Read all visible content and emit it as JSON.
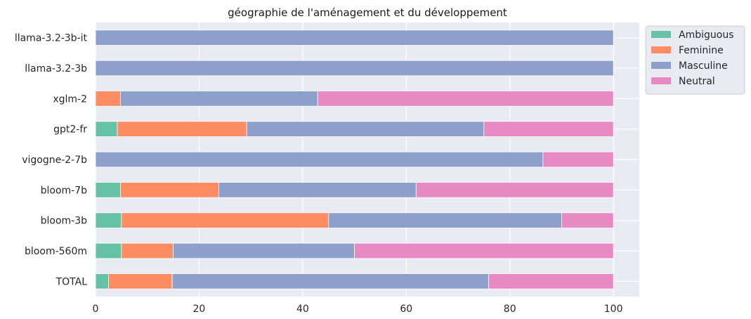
{
  "chart_data": {
    "type": "bar",
    "orientation": "horizontal",
    "stacked": true,
    "title": "géographie de l'aménagement et du développement",
    "xlabel": "",
    "ylabel": "",
    "xlim": [
      0,
      105
    ],
    "xticks": [
      "0",
      "20",
      "40",
      "60",
      "80",
      "100"
    ],
    "grid": true,
    "legend_position": "outside-top-right",
    "categories": [
      "llama-3.2-3b-it",
      "llama-3.2-3b",
      "xglm-2",
      "gpt2-fr",
      "vigogne-2-7b",
      "bloom-7b",
      "bloom-3b",
      "bloom-560m",
      "TOTAL"
    ],
    "series": [
      {
        "name": "Ambiguous",
        "color": "#66c2a5",
        "values": [
          0,
          0,
          0,
          4.2,
          0,
          4.8,
          5.0,
          5.0,
          2.5
        ]
      },
      {
        "name": "Feminine",
        "color": "#fc8d62",
        "values": [
          0,
          0,
          4.8,
          25.0,
          0,
          19.0,
          40.0,
          10.0,
          12.3
        ]
      },
      {
        "name": "Masculine",
        "color": "#8da0cb",
        "values": [
          100,
          100,
          38.1,
          45.8,
          86.4,
          38.1,
          45.0,
          35.0,
          61.1
        ]
      },
      {
        "name": "Neutral",
        "color": "#e78ac3",
        "values": [
          0,
          0,
          57.1,
          25.0,
          13.6,
          38.1,
          10.0,
          50.0,
          24.1
        ]
      }
    ]
  }
}
